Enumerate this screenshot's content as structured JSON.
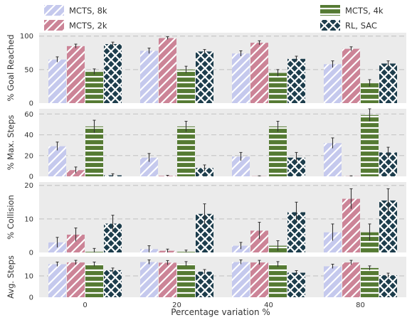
{
  "legend": {
    "items": [
      {
        "label": "MCTS, 8k",
        "series": 0
      },
      {
        "label": "MCTS, 4k",
        "series": 2
      },
      {
        "label": "MCTS, 2k",
        "series": 1
      },
      {
        "label": "RL, SAC",
        "series": 3
      }
    ]
  },
  "colors": {
    "MCTS, 8k": "#c5c9ed",
    "MCTS, 2k": "#cc8497",
    "MCTS, 4k": "#557a33",
    "RL, SAC": "#1d3d4c",
    "panel_background": "#ebebeb",
    "grid": "#c8c8c8"
  },
  "chart_data": {
    "type": "bar",
    "xlabel": "Percentage variation %",
    "categories": [
      "0",
      "20",
      "40",
      "80"
    ],
    "series_names": [
      "MCTS, 8k",
      "MCTS, 2k",
      "MCTS, 4k",
      "RL, SAC"
    ],
    "hatches": [
      "diagonal",
      "diagonal",
      "horizontal",
      "cross"
    ],
    "grid": true,
    "panels": [
      {
        "ylabel": "% Goal Reached",
        "ylim": [
          0,
          105
        ],
        "yticks": [
          "0",
          "50",
          "100"
        ],
        "ytick_values": [
          0,
          50,
          100
        ],
        "series": [
          {
            "name": "MCTS, 8k",
            "values": [
              65,
              78,
              74,
              58
            ],
            "errors": [
              4,
              4,
              4,
              5
            ]
          },
          {
            "name": "MCTS, 2k",
            "values": [
              85,
              97,
              90,
              81
            ],
            "errors": [
              3,
              2,
              3,
              3
            ]
          },
          {
            "name": "MCTS, 4k",
            "values": [
              47,
              50,
              45,
              30
            ],
            "errors": [
              4,
              5,
              5,
              5
            ]
          },
          {
            "name": "RL, SAC",
            "values": [
              88,
              77,
              66,
              59
            ],
            "errors": [
              3,
              3,
              4,
              4
            ]
          }
        ]
      },
      {
        "ylabel": "% Max. Steps",
        "ylim": [
          0,
          65
        ],
        "yticks": [
          "0",
          "20",
          "40",
          "60"
        ],
        "ytick_values": [
          0,
          20,
          40,
          60
        ],
        "series": [
          {
            "name": "MCTS, 8k",
            "values": [
              29,
              18,
              19,
              32
            ],
            "errors": [
              4,
              4,
              4,
              5
            ]
          },
          {
            "name": "MCTS, 2k",
            "values": [
              6,
              0.5,
              0.2,
              0.2
            ],
            "errors": [
              3,
              0.5,
              0.3,
              0.3
            ]
          },
          {
            "name": "MCTS, 4k",
            "values": [
              48,
              48,
              48,
              59
            ],
            "errors": [
              6,
              5,
              5,
              6
            ]
          },
          {
            "name": "RL, SAC",
            "values": [
              1,
              8,
              18,
              23
            ],
            "errors": [
              1.5,
              3,
              5,
              5
            ]
          }
        ]
      },
      {
        "ylabel": "% Collision",
        "ylim": [
          0,
          21
        ],
        "yticks": [
          "0",
          "10",
          "20"
        ],
        "ytick_values": [
          0,
          10,
          20
        ],
        "series": [
          {
            "name": "MCTS, 8k",
            "values": [
              3,
              1,
              2,
              6
            ],
            "errors": [
              1.5,
              1,
              1,
              2.5
            ]
          },
          {
            "name": "MCTS, 2k",
            "values": [
              5.3,
              0.5,
              6.5,
              16
            ],
            "errors": [
              2,
              0.5,
              2.5,
              3
            ]
          },
          {
            "name": "MCTS, 4k",
            "values": [
              0.2,
              0.2,
              2,
              6
            ],
            "errors": [
              1,
              0.5,
              1.5,
              2.5
            ]
          },
          {
            "name": "RL, SAC",
            "values": [
              8.6,
              11.5,
              12,
              15.5
            ],
            "errors": [
              2.5,
              3,
              3,
              3.5
            ]
          }
        ]
      },
      {
        "ylabel": "Avg. Steps",
        "ylim": [
          0,
          19
        ],
        "yticks": [
          "0",
          "10"
        ],
        "ytick_values": [
          0,
          10
        ],
        "series": [
          {
            "name": "MCTS, 8k",
            "values": [
              15.5,
              16.5,
              16.5,
              14.5
            ],
            "errors": [
              1,
              1,
              1,
              1
            ]
          },
          {
            "name": "MCTS, 2k",
            "values": [
              16.3,
              16.2,
              16.3,
              16.3
            ],
            "errors": [
              1,
              1,
              1,
              1
            ]
          },
          {
            "name": "MCTS, 4k",
            "values": [
              15.5,
              15.7,
              15.5,
              13.7
            ],
            "errors": [
              1,
              1,
              1.2,
              1
            ]
          },
          {
            "name": "RL, SAC",
            "values": [
              12.7,
              12,
              11.5,
              10.3
            ],
            "errors": [
              1,
              1,
              1,
              1
            ]
          }
        ]
      }
    ]
  }
}
